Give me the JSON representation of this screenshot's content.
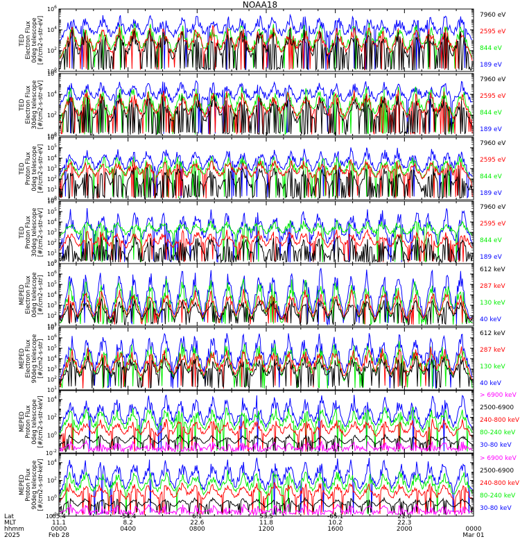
{
  "title": "NOAA18",
  "colors": {
    "black": "#000000",
    "red": "#ff0000",
    "green": "#00ee00",
    "blue": "#0000ff",
    "magenta": "#ff00ff"
  },
  "chart_data": [
    {
      "type": "line",
      "ylabel": [
        "TED",
        "Electron Flux",
        "0deg telescope",
        "[#/cm2-s-str-eV]"
      ],
      "yscale": "log",
      "ylim_exp": [
        0,
        6
      ],
      "tick_exps": [
        0,
        2,
        4,
        6
      ],
      "series": [
        {
          "name": "7960 eV",
          "color": "black"
        },
        {
          "name": "2595 eV",
          "color": "red"
        },
        {
          "name": "844 eV",
          "color": "green"
        },
        {
          "name": "189 eV",
          "color": "blue"
        }
      ]
    },
    {
      "type": "line",
      "ylabel": [
        "TED",
        "Electron Flux",
        "30deg telescope",
        "[#/cm2-s-str-eV]"
      ],
      "yscale": "log",
      "ylim_exp": [
        0,
        6
      ],
      "tick_exps": [
        0,
        2,
        4,
        6
      ],
      "series": [
        {
          "name": "7960 eV",
          "color": "black"
        },
        {
          "name": "2595 eV",
          "color": "red"
        },
        {
          "name": "844 eV",
          "color": "green"
        },
        {
          "name": "189 eV",
          "color": "blue"
        }
      ]
    },
    {
      "type": "line",
      "ylabel": [
        "TED",
        "Proton Flux",
        "0deg telescope",
        "[#/cm2-s-str-eV]"
      ],
      "yscale": "log",
      "ylim_exp": [
        0,
        6
      ],
      "tick_exps": [
        0,
        1,
        2,
        3,
        4,
        5,
        6
      ],
      "series": [
        {
          "name": "7960 eV",
          "color": "black"
        },
        {
          "name": "2595 eV",
          "color": "red"
        },
        {
          "name": "844 eV",
          "color": "green"
        },
        {
          "name": "189 eV",
          "color": "blue"
        }
      ]
    },
    {
      "type": "line",
      "ylabel": [
        "TED",
        "Proton Flux",
        "30deg telescope",
        "[#/cm2-s-str-eV]"
      ],
      "yscale": "log",
      "ylim_exp": [
        0,
        6
      ],
      "tick_exps": [
        0,
        1,
        2,
        3,
        4,
        5,
        6
      ],
      "series": [
        {
          "name": "7960 eV",
          "color": "black"
        },
        {
          "name": "2595 eV",
          "color": "red"
        },
        {
          "name": "844 eV",
          "color": "green"
        },
        {
          "name": "189 eV",
          "color": "blue"
        }
      ]
    },
    {
      "type": "line",
      "ylabel": [
        "MEPED",
        "Electron Flux",
        "0deg telescope",
        "[#/cm2-s-str]"
      ],
      "yscale": "log",
      "ylim_exp": [
        1,
        7
      ],
      "tick_exps": [
        1,
        2,
        3,
        4,
        5,
        6,
        7
      ],
      "series": [
        {
          "name": "612 keV",
          "color": "black"
        },
        {
          "name": "287 keV",
          "color": "red"
        },
        {
          "name": "130 keV",
          "color": "green"
        },
        {
          "name": "40 keV",
          "color": "blue"
        }
      ]
    },
    {
      "type": "line",
      "ylabel": [
        "MEPED",
        "Electron Flux",
        "90deg telescope",
        "[#/cm2-s-str]"
      ],
      "yscale": "log",
      "ylim_exp": [
        1,
        7
      ],
      "tick_exps": [
        1,
        2,
        3,
        4,
        5,
        6,
        7
      ],
      "series": [
        {
          "name": "612 keV",
          "color": "black"
        },
        {
          "name": "287 keV",
          "color": "red"
        },
        {
          "name": "130 keV",
          "color": "green"
        },
        {
          "name": "40 keV",
          "color": "blue"
        }
      ]
    },
    {
      "type": "line",
      "ylabel": [
        "MEPED",
        "Proton Flux",
        "0deg telescope",
        "[#/cm2-s-str-keV]"
      ],
      "yscale": "log",
      "ylim_exp": [
        -2,
        5
      ],
      "tick_exps": [
        -2,
        0,
        2,
        4
      ],
      "series": [
        {
          "name": "> 6900 keV",
          "color": "magenta"
        },
        {
          "name": "2500-6900",
          "color": "black"
        },
        {
          "name": "240-800 keV",
          "color": "red"
        },
        {
          "name": "80-240 keV",
          "color": "green"
        },
        {
          "name": "30-80 keV",
          "color": "blue"
        }
      ]
    },
    {
      "type": "line",
      "ylabel": [
        "MEPED",
        "Proton Flux",
        "90deg telescope",
        "[#/cm2-s-str-keV]"
      ],
      "yscale": "log",
      "ylim_exp": [
        -2,
        5
      ],
      "tick_exps": [
        -2,
        0,
        2,
        4
      ],
      "series": [
        {
          "name": "> 6900 keV",
          "color": "magenta"
        },
        {
          "name": "2500-6900",
          "color": "black"
        },
        {
          "name": "240-800 keV",
          "color": "red"
        },
        {
          "name": "80-240 keV",
          "color": "green"
        },
        {
          "name": "30-80 keV",
          "color": "blue"
        }
      ]
    }
  ],
  "footer": {
    "row_labels": [
      "Lat",
      "MLT",
      "hhmm",
      "2025"
    ],
    "columns": [
      {
        "lat": "65.4",
        "mlt": "11.1",
        "hhmm": "0000",
        "date": "Feb 28"
      },
      {
        "lat": "-54.4",
        "mlt": "8.2",
        "hhmm": "0400",
        "date": ""
      },
      {
        "lat": "6.1",
        "mlt": "22.6",
        "hhmm": "0800",
        "date": ""
      },
      {
        "lat": "53.5",
        "mlt": "11.8",
        "hhmm": "1200",
        "date": ""
      },
      {
        "lat": "-65.1",
        "mlt": "10.2",
        "hhmm": "1600",
        "date": ""
      },
      {
        "lat": "21.0",
        "mlt": "22.3",
        "hhmm": "2000",
        "date": ""
      },
      {
        "lat": "",
        "mlt": "",
        "hhmm": "0000",
        "date": "Mar 01"
      }
    ]
  }
}
